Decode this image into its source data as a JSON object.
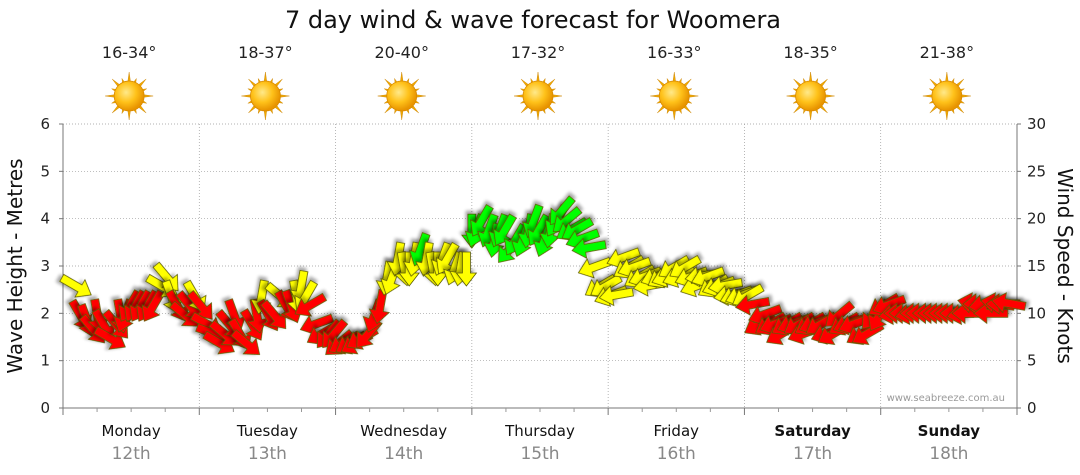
{
  "chart_data": {
    "type": "line",
    "title": "7 day wind & wave forecast for Woomera",
    "ylabel": "Wave Height - Metres",
    "y2label": "Wind Speed - Knots",
    "ylim": [
      0,
      6
    ],
    "y2lim": [
      0,
      30
    ],
    "yticks": [
      "0",
      "1",
      "2",
      "3",
      "4",
      "5",
      "6"
    ],
    "y2ticks": [
      "0",
      "5",
      "10",
      "15",
      "20",
      "25",
      "30"
    ],
    "credit": "www.seabreeze.com.au",
    "grid": true,
    "days": [
      {
        "name": "Monday",
        "date": "12th",
        "temp": "16-34°",
        "weekend": false
      },
      {
        "name": "Tuesday",
        "date": "13th",
        "temp": "18-37°",
        "weekend": false
      },
      {
        "name": "Wednesday",
        "date": "14th",
        "temp": "20-40°",
        "weekend": false
      },
      {
        "name": "Thursday",
        "date": "15th",
        "temp": "17-32°",
        "weekend": false
      },
      {
        "name": "Friday",
        "date": "16th",
        "temp": "16-33°",
        "weekend": false
      },
      {
        "name": "Saturday",
        "date": "17th",
        "temp": "18-35°",
        "weekend": true
      },
      {
        "name": "Sunday",
        "date": "18th",
        "temp": "21-38°",
        "weekend": true
      }
    ],
    "weather_icon": "sun-icon",
    "speed_colors": {
      "low": "#ff0000",
      "mid": "#ffff00",
      "high": "#00ff00"
    },
    "speed_thresholds": [
      12,
      17
    ],
    "series": [
      {
        "unit": "knots",
        "x": [
          0.08,
          0.12,
          0.17,
          0.21,
          0.25,
          0.29,
          0.33,
          0.38,
          0.42,
          0.46,
          0.5,
          0.54,
          0.58,
          0.63,
          0.67,
          0.71,
          0.75,
          0.79,
          0.83,
          0.88,
          0.92,
          0.96,
          1.0,
          1.04,
          1.08,
          1.13,
          1.17,
          1.21,
          1.25,
          1.29,
          1.33,
          1.38,
          1.42,
          1.46,
          1.5,
          1.54,
          1.58,
          1.63,
          1.67,
          1.71,
          1.75,
          1.79,
          1.83,
          1.88,
          1.92,
          1.96,
          2.0,
          2.04,
          2.08,
          2.13,
          2.17,
          2.21,
          2.25,
          2.29,
          2.33,
          2.38,
          2.42,
          2.46,
          2.5,
          2.54,
          2.58,
          2.63,
          2.67,
          2.71,
          2.75,
          2.79,
          2.83,
          2.88,
          2.92,
          2.96,
          3.0,
          3.04,
          3.08,
          3.13,
          3.17,
          3.21,
          3.25,
          3.29,
          3.33,
          3.38,
          3.42,
          3.46,
          3.5,
          3.54,
          3.58,
          3.63,
          3.67,
          3.71,
          3.75,
          3.79,
          3.83,
          3.88,
          3.92,
          3.96,
          4.0,
          4.04,
          4.08,
          4.13,
          4.17,
          4.21,
          4.25,
          4.29,
          4.33,
          4.38,
          4.42,
          4.46,
          4.5,
          4.54,
          4.58,
          4.63,
          4.67,
          4.71,
          4.75,
          4.79,
          4.83,
          4.88,
          4.92,
          4.96,
          5.0,
          5.04,
          5.08,
          5.13,
          5.17,
          5.21,
          5.25,
          5.29,
          5.33,
          5.38,
          5.42,
          5.46,
          5.5,
          5.54,
          5.58,
          5.63,
          5.67,
          5.71,
          5.75,
          5.79,
          5.83,
          5.88,
          5.92,
          5.96,
          6.0,
          6.04,
          6.08,
          6.13,
          6.17,
          6.21,
          6.25,
          6.29,
          6.33,
          6.38,
          6.42,
          6.46,
          6.5,
          6.54,
          6.58,
          6.63,
          6.67,
          6.71,
          6.75,
          6.79,
          6.83,
          6.88,
          6.92,
          6.96
        ],
        "values": [
          13,
          10,
          9.5,
          8.5,
          10,
          9,
          7.5,
          9,
          10,
          10,
          11,
          11,
          11,
          11,
          11,
          13,
          14,
          12,
          11,
          10,
          11,
          12,
          11,
          9,
          8,
          7,
          8,
          9,
          10,
          8,
          7,
          9,
          10,
          12,
          10,
          10,
          12,
          11,
          11,
          12,
          13,
          12,
          11,
          9,
          8,
          8,
          8,
          7,
          7,
          7,
          7,
          7.5,
          8,
          10,
          11,
          14,
          14,
          16,
          15,
          15,
          16,
          17,
          16,
          15,
          15,
          16,
          16,
          15,
          15,
          15,
          19,
          19,
          20,
          19,
          18,
          19,
          19,
          17,
          18,
          18,
          19,
          20,
          19,
          18,
          19,
          20,
          21,
          20,
          19,
          19,
          18,
          17,
          15,
          13,
          13,
          12,
          12,
          16,
          15,
          15,
          14,
          14,
          13,
          14,
          14,
          14,
          15,
          14,
          15,
          14,
          13,
          14,
          14,
          13,
          13,
          13,
          12,
          12,
          12,
          12,
          11,
          9,
          10,
          9,
          9,
          8,
          9,
          9,
          9,
          8,
          9,
          9,
          9,
          8,
          8,
          10,
          9,
          9,
          9,
          8,
          8,
          10,
          10,
          11,
          11,
          10,
          10,
          10,
          10,
          10,
          10,
          10,
          10,
          10,
          10,
          10,
          10,
          10,
          10,
          11,
          11,
          11,
          10,
          11,
          11,
          11
        ],
        "directions_deg": [
          300,
          330,
          340,
          320,
          350,
          330,
          300,
          320,
          350,
          20,
          30,
          30,
          30,
          30,
          30,
          300,
          320,
          340,
          330,
          310,
          320,
          330,
          320,
          300,
          290,
          300,
          310,
          320,
          340,
          330,
          310,
          330,
          350,
          10,
          330,
          320,
          310,
          330,
          340,
          350,
          10,
          30,
          60,
          70,
          60,
          40,
          40,
          50,
          60,
          60,
          60,
          60,
          40,
          20,
          10,
          10,
          20,
          10,
          350,
          0,
          10,
          20,
          10,
          350,
          0,
          20,
          30,
          20,
          10,
          0,
          0,
          20,
          30,
          20,
          10,
          20,
          30,
          40,
          30,
          20,
          10,
          20,
          30,
          20,
          10,
          30,
          40,
          50,
          60,
          60,
          70,
          80,
          70,
          60,
          60,
          70,
          80,
          70,
          60,
          70,
          60,
          70,
          80,
          70,
          60,
          70,
          60,
          70,
          60,
          70,
          70,
          80,
          70,
          60,
          70,
          80,
          80,
          70,
          70,
          60,
          80,
          60,
          70,
          60,
          70,
          60,
          60,
          70,
          60,
          70,
          60,
          70,
          60,
          70,
          60,
          50,
          60,
          70,
          70,
          60,
          60,
          40,
          30,
          60,
          70,
          80,
          90,
          90,
          80,
          90,
          90,
          90,
          90,
          90,
          90,
          90,
          90,
          80,
          90,
          100,
          90,
          80,
          90,
          100,
          90,
          100
        ]
      }
    ]
  }
}
